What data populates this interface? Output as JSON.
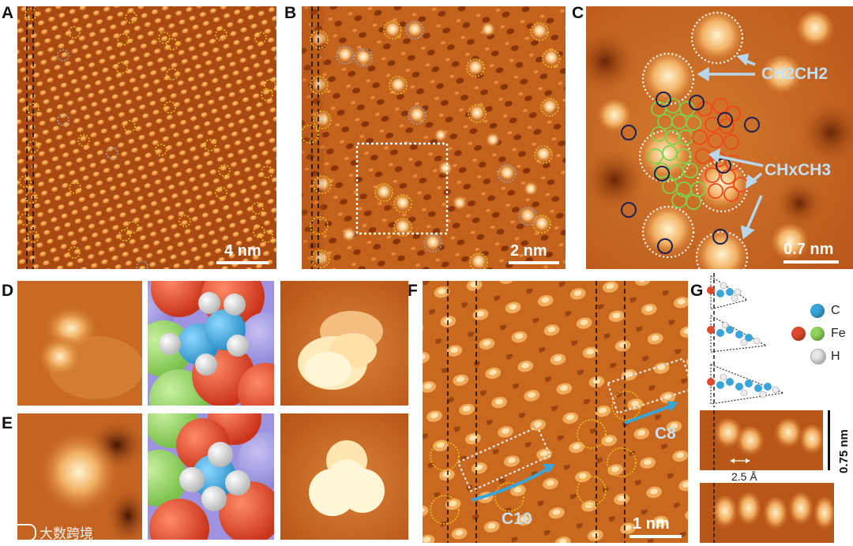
{
  "panel_labels": {
    "a": "A",
    "b": "B",
    "c": "C",
    "d": "D",
    "e": "E",
    "f": "F",
    "g": "G"
  },
  "scale_labels": {
    "a": "4 nm",
    "b": "2 nm",
    "c": "0.7 nm",
    "f": "1 nm"
  },
  "annotations": {
    "ch2ch2": "CH2CH2",
    "chxch3": "CHxCH3",
    "c10": "C10",
    "c8": "C8",
    "angstrom": "2.5 Å",
    "g_scale": "0.75 nm"
  },
  "legend": [
    {
      "label": "C",
      "color": "#3aa5d8"
    },
    {
      "label": "Fe",
      "color": "#e0492c"
    },
    {
      "label": "H",
      "color": "#e6e6e6"
    }
  ],
  "legend_fe_second_color": "#8fd35a",
  "watermark": "大数跨境",
  "colors": {
    "stm_dark": "#7a2e07",
    "stm_mid": "#c6631c",
    "stm_light": "#f0b060",
    "stm_bright": "#fff3cf",
    "yellow_circle": "#f2c21a",
    "gray_circle": "#9aa6b5",
    "arrow": "#b9d7ec",
    "blue_arrow": "#3aa5d8"
  }
}
